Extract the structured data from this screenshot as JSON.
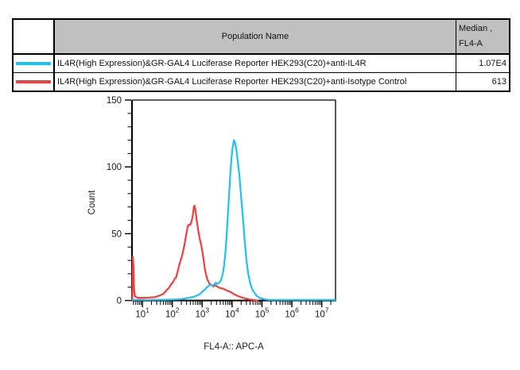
{
  "table": {
    "header": {
      "population": "Population Name",
      "median_line1": "Median ,",
      "median_line2": "FL4-A"
    },
    "rows": [
      {
        "color": "#1cc2f2",
        "name": "IL4R(High Expression)&GR-GAL4 Luciferase Reporter HEK293(C20)+anti-IL4R",
        "median": "1.07E4"
      },
      {
        "color": "#f93b3b",
        "name": "IL4R(High Expression)&GR-GAL4 Luciferase Reporter HEK293(C20)+anti-Isotype Control",
        "median": "613"
      }
    ]
  },
  "chart_data": {
    "type": "line",
    "subtype": "flow-cytometry-histogram",
    "title": "",
    "xlabel": "FL4-A:: APC-A",
    "ylabel": "Count",
    "x_scale": "log10",
    "x_tick_base": "10",
    "x_tick_exponents": [
      1,
      2,
      3,
      4,
      5,
      6,
      7
    ],
    "xlog_range": [
      0.65,
      7.46
    ],
    "ylim": [
      0,
      150
    ],
    "y_major_ticks": [
      0,
      50,
      100,
      150
    ],
    "y_minor_step": 10,
    "grid": "off",
    "legend": "table-above",
    "series": [
      {
        "id": "anti-IL4R",
        "name": "IL4R(High Expression)&GR-GAL4 Luciferase Reporter HEK293(C20)+anti-IL4R",
        "color": "#1cc2f2",
        "median_fl4a": "1.07E4",
        "peak": {
          "x": 11000,
          "count": 120
        },
        "points": [
          [
            0.66,
            0.5
          ],
          [
            1.2,
            0.5
          ],
          [
            1.8,
            0.6
          ],
          [
            2.1,
            0.8
          ],
          [
            2.35,
            1.2
          ],
          [
            2.55,
            2
          ],
          [
            2.75,
            3
          ],
          [
            2.9,
            4.5
          ],
          [
            3.0,
            6.5
          ],
          [
            3.08,
            8
          ],
          [
            3.16,
            10
          ],
          [
            3.24,
            11.5
          ],
          [
            3.3,
            12
          ],
          [
            3.34,
            11
          ],
          [
            3.4,
            12
          ],
          [
            3.46,
            13.5
          ],
          [
            3.5,
            12.5
          ],
          [
            3.56,
            13
          ],
          [
            3.62,
            15
          ],
          [
            3.68,
            19
          ],
          [
            3.73,
            26
          ],
          [
            3.78,
            37
          ],
          [
            3.82,
            50
          ],
          [
            3.86,
            65
          ],
          [
            3.9,
            80
          ],
          [
            3.94,
            95
          ],
          [
            3.98,
            107
          ],
          [
            4.02,
            115
          ],
          [
            4.06,
            120
          ],
          [
            4.1,
            118
          ],
          [
            4.14,
            113
          ],
          [
            4.18,
            106
          ],
          [
            4.24,
            94
          ],
          [
            4.3,
            78
          ],
          [
            4.36,
            62
          ],
          [
            4.42,
            45
          ],
          [
            4.48,
            30
          ],
          [
            4.54,
            20
          ],
          [
            4.6,
            13.5
          ],
          [
            4.66,
            9
          ],
          [
            4.74,
            6
          ],
          [
            4.82,
            3.5
          ],
          [
            4.92,
            2
          ],
          [
            5.05,
            1.2
          ],
          [
            5.15,
            0.7
          ],
          [
            5.25,
            0.5
          ],
          [
            5.8,
            0.5
          ],
          [
            6.5,
            0.5
          ],
          [
            7.44,
            0.5
          ]
        ]
      },
      {
        "id": "anti-Isotype-Control",
        "name": "IL4R(High Expression)&GR-GAL4 Luciferase Reporter HEK293(C20)+anti-Isotype Control",
        "color": "#f93b3b",
        "median_fl4a": "613",
        "peak": {
          "x": 560,
          "count": 71
        },
        "points": [
          [
            0.66,
            0
          ],
          [
            0.67,
            20
          ],
          [
            0.68,
            33
          ],
          [
            0.7,
            25
          ],
          [
            0.72,
            8
          ],
          [
            0.75,
            3
          ],
          [
            0.85,
            2
          ],
          [
            1.0,
            2
          ],
          [
            1.2,
            2.2
          ],
          [
            1.4,
            2.5
          ],
          [
            1.55,
            3.5
          ],
          [
            1.7,
            5
          ],
          [
            1.8,
            7.5
          ],
          [
            1.9,
            10
          ],
          [
            1.97,
            12.5
          ],
          [
            2.03,
            14
          ],
          [
            2.08,
            16.5
          ],
          [
            2.12,
            17
          ],
          [
            2.18,
            22
          ],
          [
            2.25,
            28
          ],
          [
            2.32,
            33
          ],
          [
            2.4,
            41
          ],
          [
            2.47,
            50
          ],
          [
            2.52,
            56
          ],
          [
            2.57,
            57
          ],
          [
            2.6,
            56.5
          ],
          [
            2.64,
            59
          ],
          [
            2.68,
            63
          ],
          [
            2.72,
            70
          ],
          [
            2.74,
            71
          ],
          [
            2.77,
            68
          ],
          [
            2.81,
            61
          ],
          [
            2.86,
            53
          ],
          [
            2.92,
            46
          ],
          [
            2.98,
            40
          ],
          [
            3.03,
            33
          ],
          [
            3.08,
            25
          ],
          [
            3.12,
            20
          ],
          [
            3.17,
            16
          ],
          [
            3.23,
            13
          ],
          [
            3.3,
            11.5
          ],
          [
            3.38,
            10.5
          ],
          [
            3.44,
            11.5
          ],
          [
            3.5,
            10.5
          ],
          [
            3.58,
            9.5
          ],
          [
            3.68,
            9
          ],
          [
            3.78,
            8
          ],
          [
            3.88,
            7
          ],
          [
            3.98,
            6
          ],
          [
            4.08,
            4.5
          ],
          [
            4.18,
            3.5
          ],
          [
            4.3,
            2.5
          ],
          [
            4.45,
            1.5
          ],
          [
            4.6,
            0.8
          ],
          [
            4.75,
            0.3
          ],
          [
            4.85,
            0
          ]
        ]
      }
    ]
  }
}
